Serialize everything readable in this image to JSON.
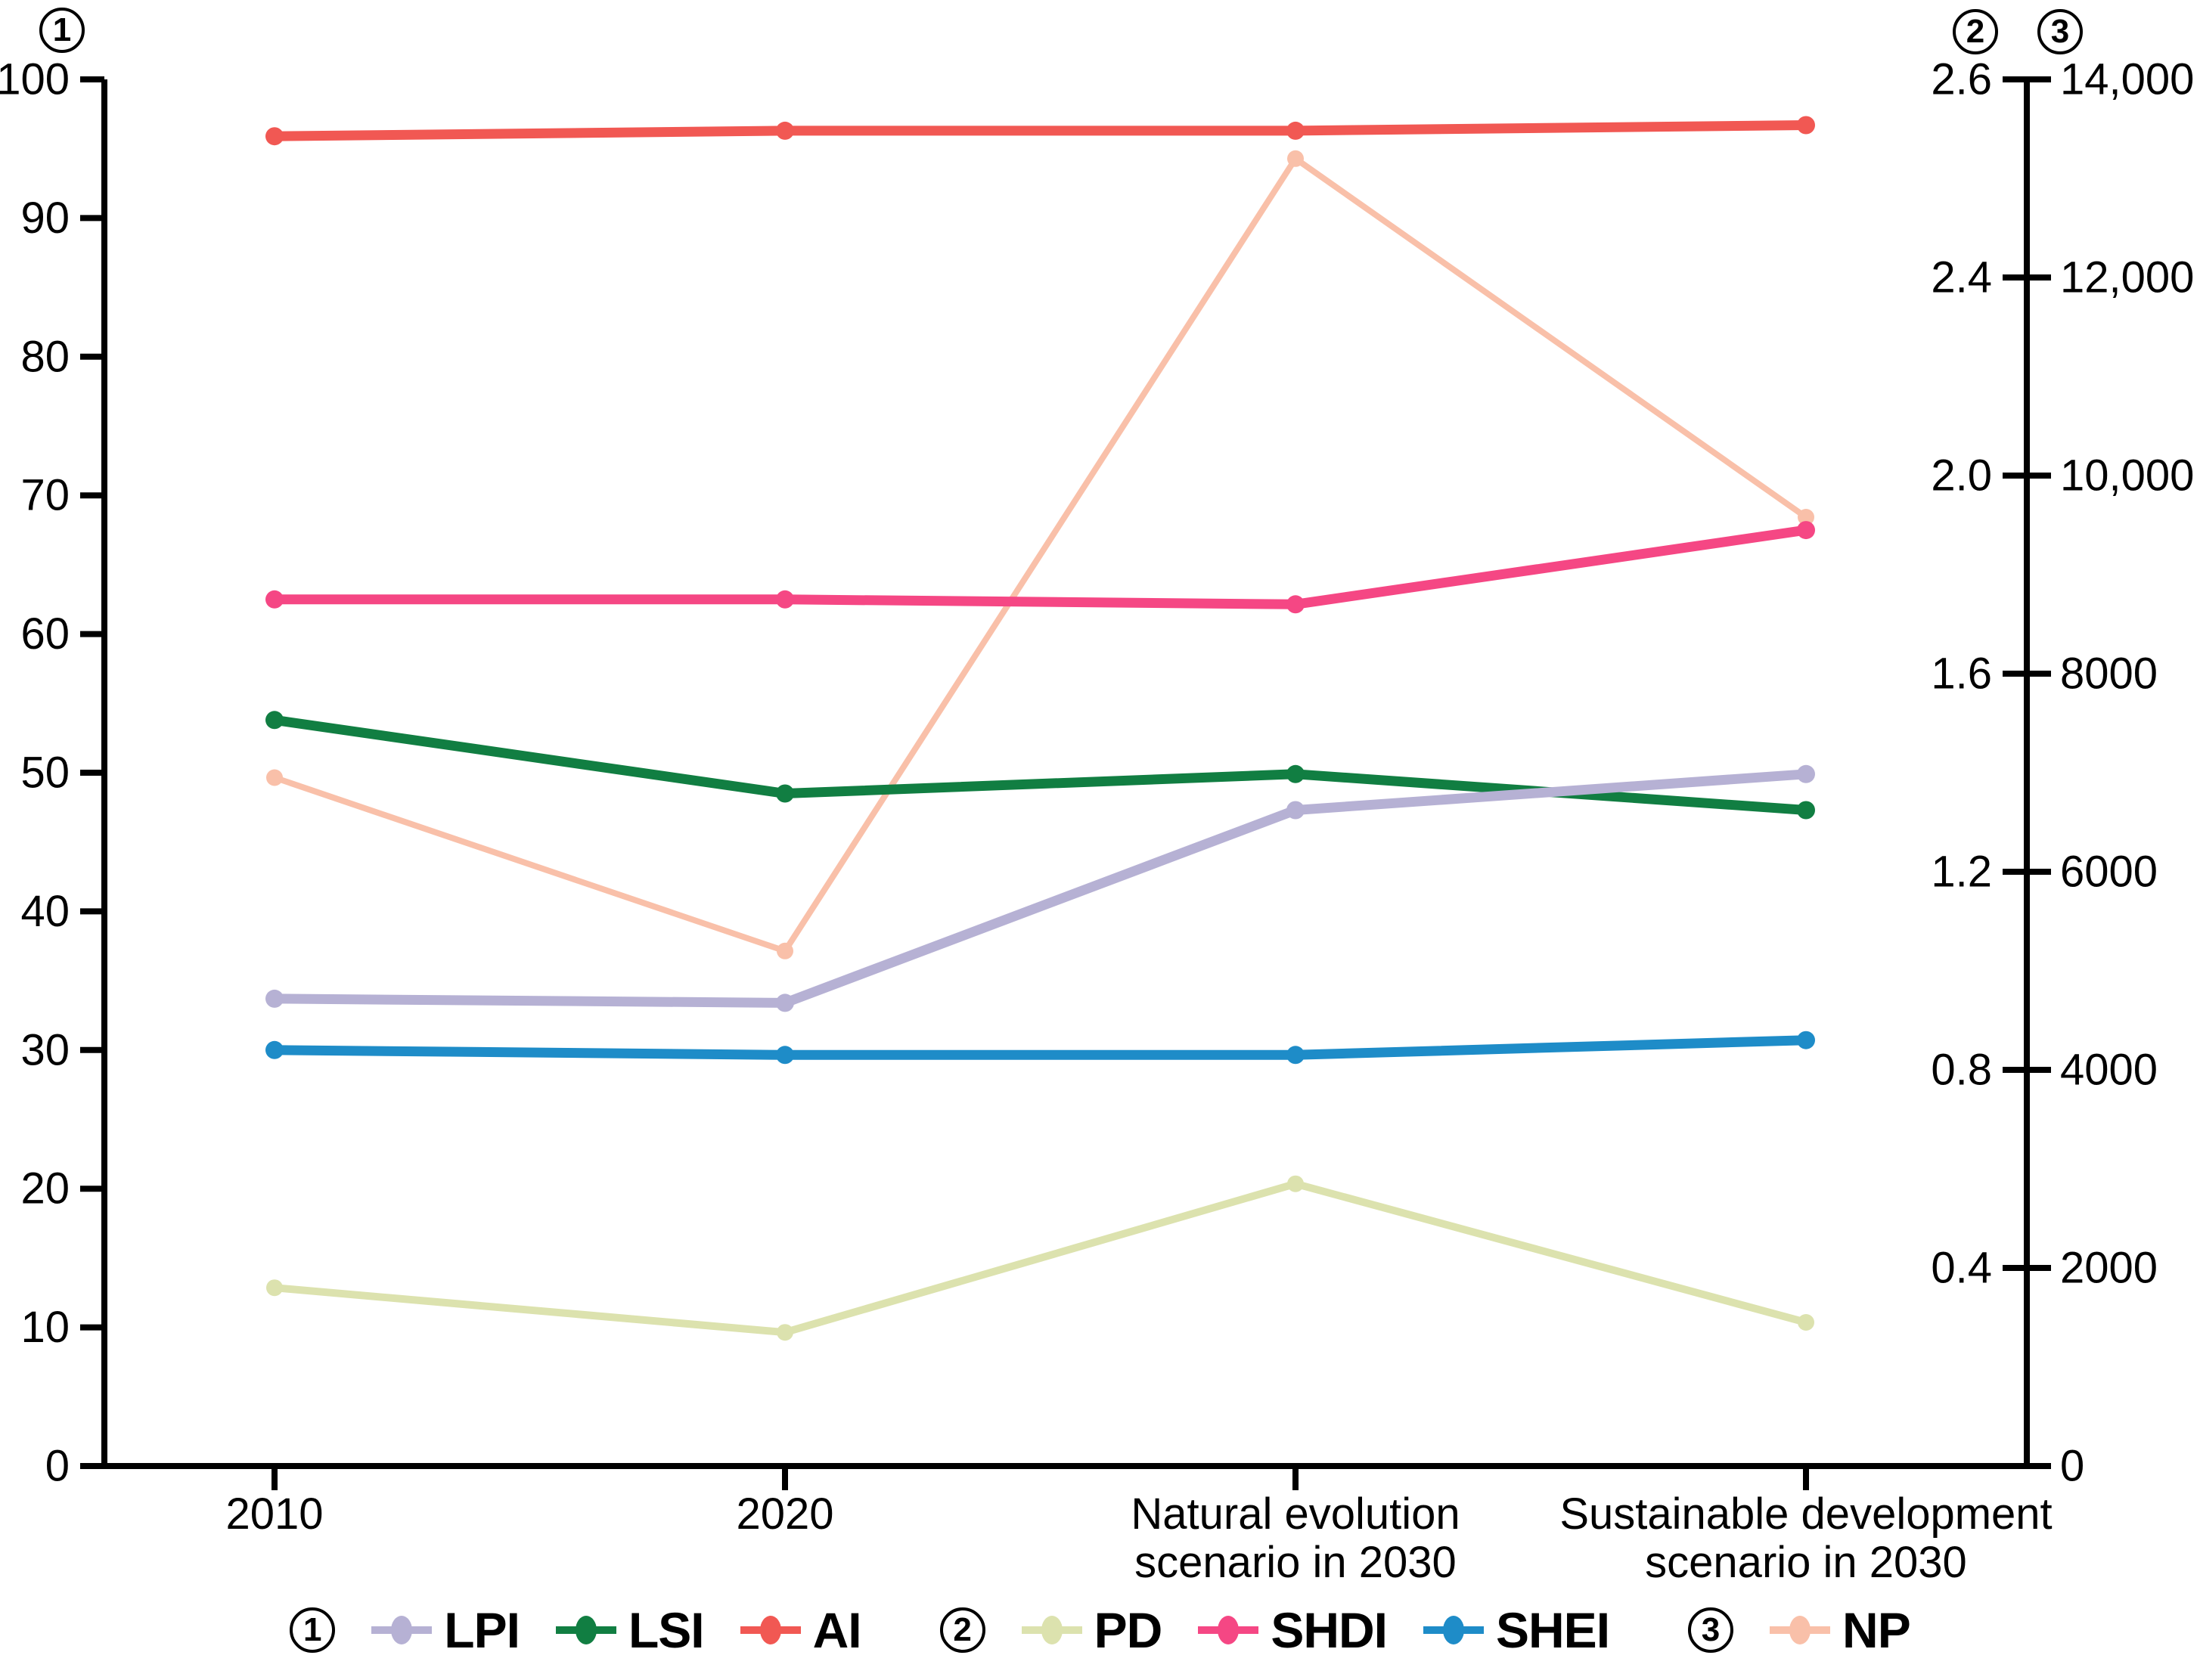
{
  "chart_data": {
    "type": "line",
    "title": "",
    "categories": [
      "2010",
      "2020",
      "Natural evolution scenario in 2030",
      "Sustainable development scenario in 2030"
    ],
    "category_label_lines": [
      [
        "2010"
      ],
      [
        "2020"
      ],
      [
        "Natural evolution",
        "scenario in 2030"
      ],
      [
        "Sustainable development",
        "scenario in 2030"
      ]
    ],
    "axes": {
      "left": {
        "digit": "1",
        "symbol": "①",
        "range": [
          0,
          100
        ],
        "tick_values": [
          0,
          10,
          20,
          30,
          40,
          50,
          60,
          70,
          80,
          90,
          100
        ],
        "tick_labels": [
          "0",
          "10",
          "20",
          "30",
          "40",
          "50",
          "60",
          "70",
          "80",
          "90",
          "100"
        ]
      },
      "right_inner": {
        "digit": "2",
        "symbol": "②",
        "range": [
          0,
          2.6
        ],
        "tick_labels_bottom_to_top": [
          "",
          "0.4",
          "0.8",
          "1.2",
          "1.6",
          "2.0",
          "2.4",
          "2.6"
        ]
      },
      "right_outer": {
        "digit": "3",
        "symbol": "③",
        "range": [
          0,
          14000
        ],
        "tick_labels_bottom_to_top": [
          "0",
          "2000",
          "4000",
          "6000",
          "8000",
          "10,000",
          "12,000",
          "14,000"
        ]
      }
    },
    "series": [
      {
        "name": "LPI",
        "axis": "1",
        "color": "#b6b1d4",
        "values": [
          33.7,
          33.4,
          47.3,
          49.9
        ]
      },
      {
        "name": "LSI",
        "axis": "1",
        "color": "#117e42",
        "values": [
          53.8,
          48.5,
          49.9,
          47.3
        ]
      },
      {
        "name": "AI",
        "axis": "1",
        "color": "#f15853",
        "values": [
          95.9,
          96.3,
          96.3,
          96.7
        ]
      },
      {
        "name": "PD",
        "axis": "2",
        "color": "#dce2ae",
        "values": [
          0.36,
          0.27,
          0.57,
          0.29
        ]
      },
      {
        "name": "SHDI",
        "axis": "2",
        "color": "#f54784",
        "values": [
          1.75,
          1.75,
          1.74,
          1.89
        ]
      },
      {
        "name": "SHEI",
        "axis": "2",
        "color": "#1e8cc8",
        "values": [
          0.84,
          0.83,
          0.83,
          0.86
        ]
      },
      {
        "name": "NP",
        "axis": "3",
        "color": "#f9c0a9",
        "values": [
          6950,
          5200,
          13200,
          9580
        ]
      }
    ],
    "legend": {
      "position": "bottom",
      "groups": [
        {
          "digit": "1",
          "symbol": "①",
          "items": [
            "LPI",
            "LSI",
            "AI"
          ]
        },
        {
          "digit": "2",
          "symbol": "②",
          "items": [
            "PD",
            "SHDI",
            "SHEI"
          ]
        },
        {
          "digit": "3",
          "symbol": "③",
          "items": [
            "NP"
          ]
        }
      ]
    },
    "grid": false,
    "background": "#ffffff",
    "xlabel": "",
    "ylabel": ""
  }
}
